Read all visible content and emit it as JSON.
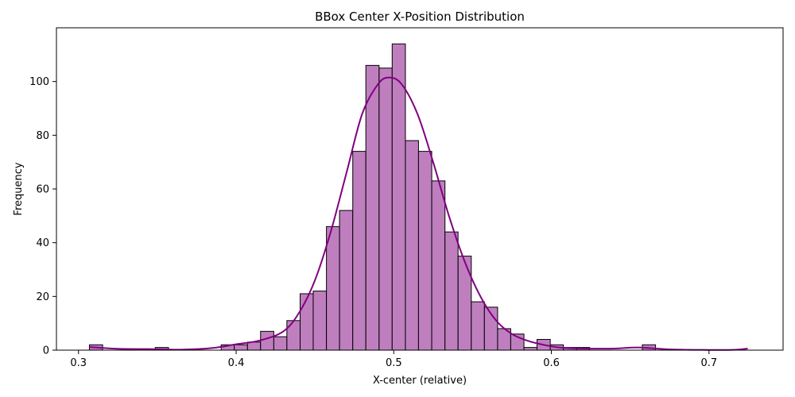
{
  "chart_data": {
    "type": "bar",
    "title": "BBox Center X-Position Distribution",
    "xlabel": "X-center (relative)",
    "ylabel": "Frequency",
    "xlim": [
      0.286,
      0.747
    ],
    "ylim": [
      0,
      120
    ],
    "xticks": [
      0.3,
      0.4,
      0.5,
      0.6,
      0.7
    ],
    "xtick_labels": [
      "0.3",
      "0.4",
      "0.5",
      "0.6",
      "0.7"
    ],
    "yticks": [
      0,
      20,
      40,
      60,
      80,
      100
    ],
    "ytick_labels": [
      "0",
      "20",
      "40",
      "60",
      "80",
      "100"
    ],
    "grid": false,
    "bin_edges": [
      0.3069,
      0.3153,
      0.3236,
      0.332,
      0.3403,
      0.3487,
      0.3571,
      0.3654,
      0.3738,
      0.3821,
      0.3905,
      0.3988,
      0.4072,
      0.4155,
      0.4239,
      0.4322,
      0.4406,
      0.4489,
      0.4573,
      0.4656,
      0.474,
      0.4823,
      0.4907,
      0.499,
      0.5074,
      0.5157,
      0.5241,
      0.5325,
      0.5408,
      0.5492,
      0.5575,
      0.5659,
      0.5742,
      0.5826,
      0.5909,
      0.5993,
      0.6076,
      0.616,
      0.6243,
      0.6327,
      0.641,
      0.6494,
      0.6577,
      0.6661,
      0.6744,
      0.6828,
      0.6911,
      0.6995,
      0.7079,
      0.7162,
      0.7246
    ],
    "counts": [
      2,
      0,
      0,
      0,
      0,
      1,
      0,
      0,
      0,
      0,
      2,
      2,
      3,
      7,
      5,
      11,
      21,
      22,
      46,
      52,
      74,
      106,
      105,
      114,
      78,
      74,
      63,
      44,
      35,
      18,
      16,
      8,
      6,
      1,
      4,
      2,
      1,
      1,
      0,
      0,
      0,
      0,
      2,
      0,
      0,
      0,
      0,
      0,
      0,
      0,
      1
    ],
    "kde": {
      "x": [
        0.3069,
        0.325,
        0.345,
        0.365,
        0.385,
        0.4,
        0.415,
        0.43,
        0.44,
        0.45,
        0.46,
        0.47,
        0.48,
        0.49,
        0.497,
        0.505,
        0.515,
        0.525,
        0.535,
        0.545,
        0.555,
        0.565,
        0.575,
        0.585,
        0.595,
        0.605,
        0.62,
        0.64,
        0.655,
        0.675,
        0.695,
        0.715,
        0.7246
      ],
      "y": [
        1.2,
        0.5,
        0.4,
        0.2,
        0.8,
        2.2,
        3.6,
        7.0,
        14.0,
        26.0,
        44.0,
        66.0,
        88.0,
        99.0,
        101.5,
        99.0,
        88.0,
        70.0,
        50.0,
        33.0,
        20.0,
        11.0,
        6.0,
        3.5,
        2.0,
        1.0,
        0.6,
        0.6,
        1.0,
        0.3,
        0.1,
        0.1,
        0.6
      ]
    },
    "colors": {
      "bar_fill": "#bf7fbf",
      "bar_edge": "#000000",
      "kde_line": "#800080",
      "axis": "#000000"
    }
  }
}
